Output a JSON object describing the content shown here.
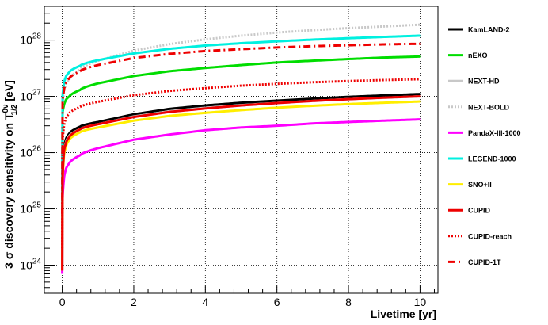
{
  "chart_data": {
    "type": "line",
    "xlabel": "Livetime [yr]",
    "ylabel": {
      "prefix": "3 ",
      "sigma": "σ",
      "middle": " discovery sensitivity on T",
      "sup": "0ν",
      "sub": "1/2",
      "suffix": " [eV]"
    },
    "xlim": [
      -0.5,
      10.5
    ],
    "ylim_log10": [
      23.5,
      28.6
    ],
    "x_ticks": [
      0,
      2,
      4,
      6,
      8,
      10
    ],
    "x_tick_labels": [
      "0",
      "2",
      "4",
      "6",
      "8",
      "10"
    ],
    "y_ticks": [
      {
        "mantissa": "10",
        "exp": "24",
        "log": 24
      },
      {
        "mantissa": "10",
        "exp": "25",
        "log": 25
      },
      {
        "mantissa": "10",
        "exp": "26",
        "log": 26
      },
      {
        "mantissa": "10",
        "exp": "27",
        "log": 27
      },
      {
        "mantissa": "10",
        "exp": "28",
        "log": 28
      }
    ],
    "grid": true,
    "legend_position": "right",
    "x": [
      0,
      0.01,
      0.05,
      0.1,
      0.2,
      0.5,
      1,
      2,
      3,
      4,
      5,
      6,
      7,
      8,
      9,
      10
    ],
    "series": [
      {
        "name": "KamLAND-2",
        "color": "#000000",
        "style": "solid",
        "values": [
          8e+23,
          4e+25,
          1.2e+26,
          1.7e+26,
          2.2e+26,
          2.9e+26,
          3.5e+26,
          4.8e+26,
          6e+26,
          6.9e+26,
          7.7e+26,
          8.4e+26,
          9.1e+26,
          9.8e+26,
          1.04e+27,
          1.1e+27
        ]
      },
      {
        "name": "nEXO",
        "color": "#00dd00",
        "style": "solid",
        "values": [
          6e+24,
          5e+26,
          7e+26,
          8.5e+26,
          1e+27,
          1.3e+27,
          1.7e+27,
          2.3e+27,
          2.8e+27,
          3.2e+27,
          3.6e+27,
          4e+27,
          4.3e+27,
          4.6e+27,
          4.9e+27,
          5.1e+27
        ]
      },
      {
        "name": "NEXT-HD",
        "color": "#c8c8c8",
        "style": "solid",
        "values": [
          8e+23,
          3.5e+25,
          1.1e+26,
          1.5e+26,
          2e+26,
          2.6e+26,
          3.2e+26,
          4.4e+26,
          5.4e+26,
          6.2e+26,
          6.9e+26,
          7.6e+26,
          8.3e+26,
          8.9e+26,
          9.4e+26,
          1e+27
        ]
      },
      {
        "name": "NEXT-BOLD",
        "color": "#c8c8c8",
        "style": "dotted",
        "values": [
          8e+24,
          6e+26,
          1.2e+27,
          1.6e+27,
          2e+27,
          3e+27,
          4.3e+27,
          6.5e+27,
          8.5e+27,
          1.03e+28,
          1.2e+28,
          1.36e+28,
          1.5e+28,
          1.63e+28,
          1.75e+28,
          1.88e+28
        ]
      },
      {
        "name": "PandaX-III-1000",
        "color": "#ff00ff",
        "style": "solid",
        "values": [
          7e+23,
          1.5e+25,
          3.5e+25,
          5e+25,
          6.5e+25,
          9e+25,
          1.2e+26,
          1.7e+26,
          2.1e+26,
          2.5e+26,
          2.8e+26,
          3e+26,
          3.3e+26,
          3.5e+26,
          3.7e+26,
          3.9e+26
        ]
      },
      {
        "name": "LEGEND-1000",
        "color": "#00f0e0",
        "style": "solid",
        "values": [
          1e+25,
          1e+27,
          1.7e+27,
          2.2e+27,
          2.7e+27,
          3.5e+27,
          4.4e+27,
          5.8e+27,
          7e+27,
          8e+27,
          8.8e+27,
          9.5e+27,
          1.02e+28,
          1.08e+28,
          1.14e+28,
          1.2e+28
        ]
      },
      {
        "name": "SNO+II",
        "color": "#ffee00",
        "style": "solid",
        "values": [
          8e+23,
          3e+25,
          9e+25,
          1.25e+26,
          1.7e+26,
          2.3e+26,
          2.8e+26,
          3.7e+26,
          4.5e+26,
          5.1e+26,
          5.7e+26,
          6.3e+26,
          6.8e+26,
          7.3e+26,
          7.7e+26,
          8.1e+26
        ]
      },
      {
        "name": "CUPID",
        "color": "#ee0000",
        "style": "solid",
        "values": [
          8e+23,
          3.5e+25,
          1.05e+26,
          1.45e+26,
          1.9e+26,
          2.6e+26,
          3.2e+26,
          4.3e+26,
          5.3e+26,
          6.1e+26,
          6.9e+26,
          7.6e+26,
          8.3e+26,
          8.9e+26,
          9.5e+26,
          1e+27
        ]
      },
      {
        "name": "CUPID-reach",
        "color": "#ee0000",
        "style": "dotted",
        "values": [
          2e+24,
          1.5e+26,
          3e+26,
          4e+26,
          5e+26,
          6.5e+26,
          8e+26,
          1.05e+27,
          1.25e+27,
          1.4e+27,
          1.55e+27,
          1.67e+27,
          1.78e+27,
          1.87e+27,
          1.95e+27,
          2.02e+27
        ]
      },
      {
        "name": "CUPID-1T",
        "color": "#ee0000",
        "style": "dashdot",
        "values": [
          8e+24,
          8e+26,
          1.3e+27,
          1.7e+27,
          2.1e+27,
          2.8e+27,
          3.6e+27,
          4.8e+27,
          5.7e+27,
          6.4e+27,
          6.9e+27,
          7.4e+27,
          7.8e+27,
          8.1e+27,
          8.4e+27,
          8.6e+27
        ]
      }
    ]
  }
}
